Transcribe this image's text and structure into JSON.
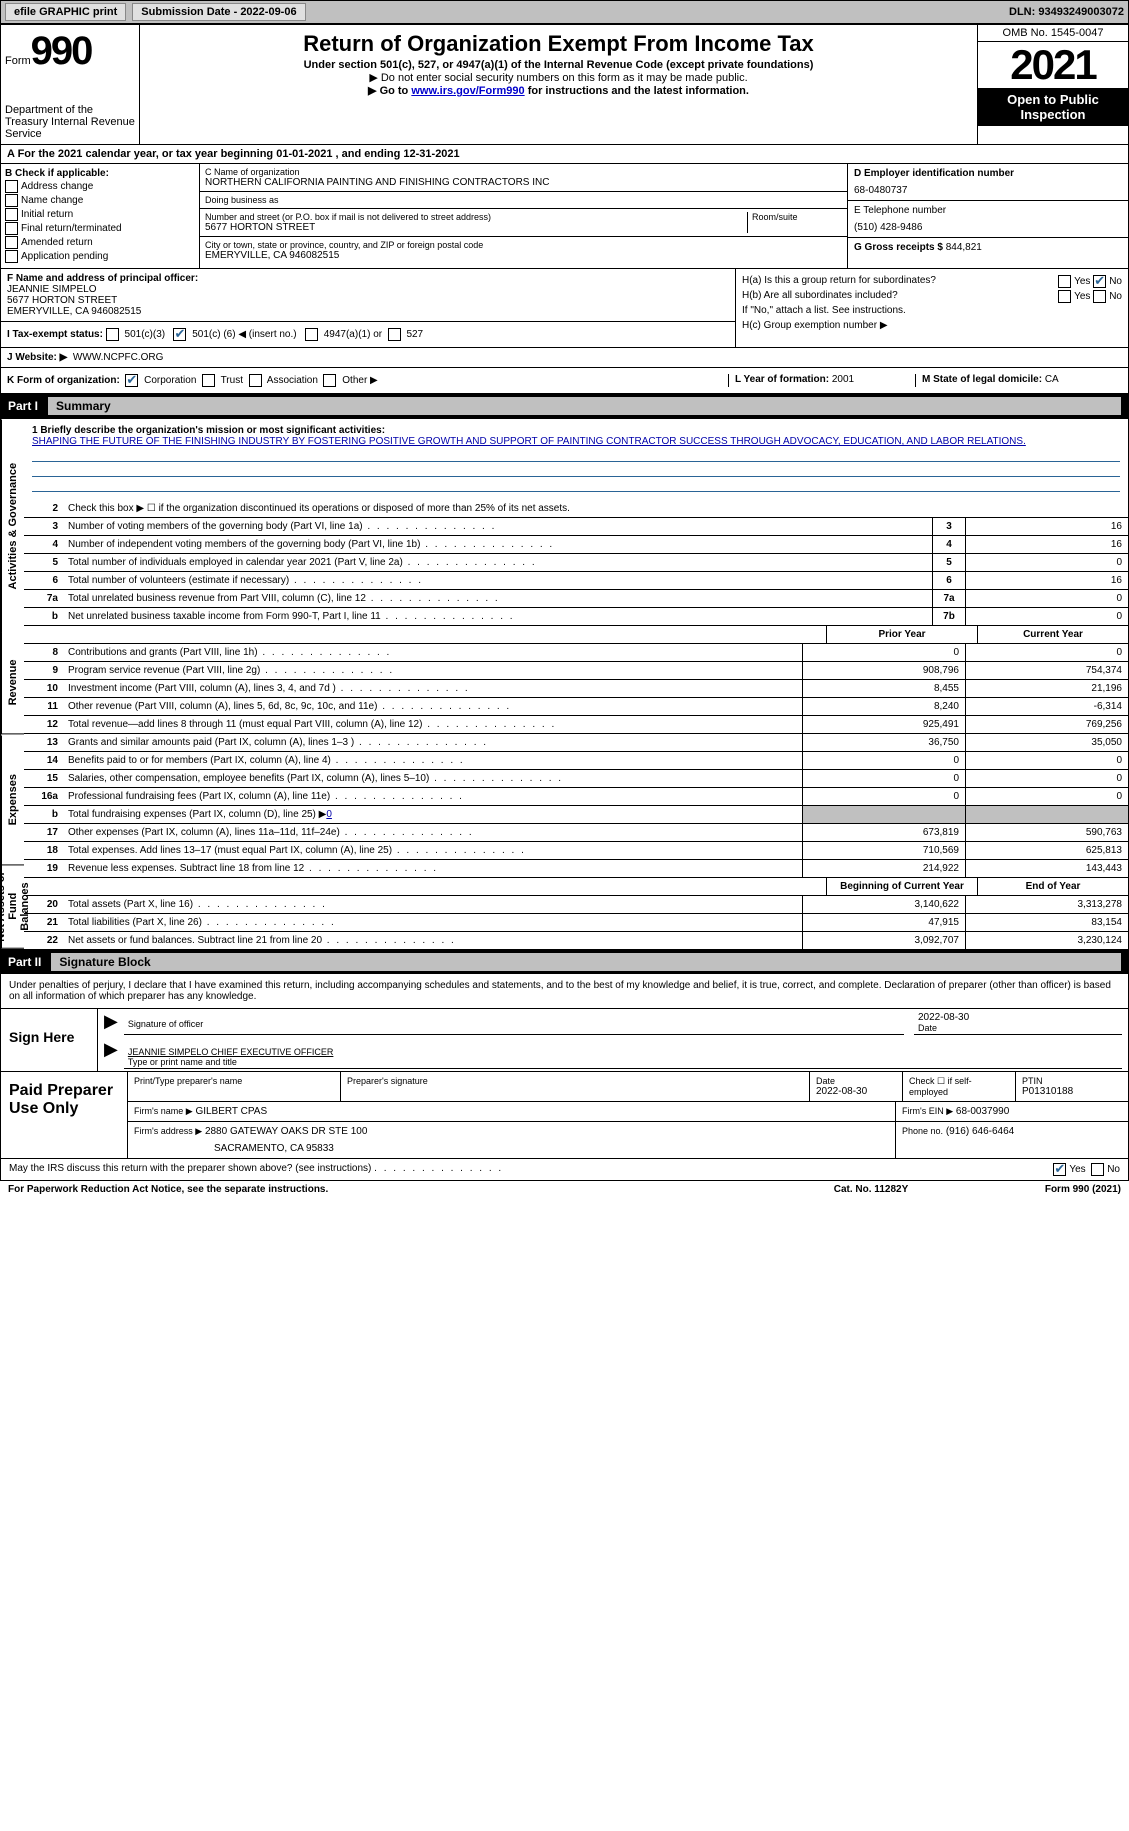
{
  "topbar": {
    "efile": "efile GRAPHIC print",
    "submission_label": "Submission Date - 2022-09-06",
    "dln": "DLN: 93493249003072"
  },
  "header": {
    "form_word": "Form",
    "form_num": "990",
    "dept": "Department of the Treasury Internal Revenue Service",
    "title": "Return of Organization Exempt From Income Tax",
    "sub": "Under section 501(c), 527, or 4947(a)(1) of the Internal Revenue Code (except private foundations)",
    "note1": "▶ Do not enter social security numbers on this form as it may be made public.",
    "note2_pre": "▶ Go to ",
    "note2_link": "www.irs.gov/Form990",
    "note2_post": " for instructions and the latest information.",
    "omb": "OMB No. 1545-0047",
    "year": "2021",
    "open": "Open to Public Inspection"
  },
  "section_a": {
    "text_pre": "A For the 2021 calendar year, or tax year beginning ",
    "begin": "01-01-2021",
    "mid": " , and ending ",
    "end": "12-31-2021"
  },
  "col_b": {
    "label": "B Check if applicable:",
    "items": [
      "Address change",
      "Name change",
      "Initial return",
      "Final return/terminated",
      "Amended return",
      "Application pending"
    ]
  },
  "col_c": {
    "name_label": "C Name of organization",
    "name": "NORTHERN CALIFORNIA PAINTING AND FINISHING CONTRACTORS INC",
    "dba_label": "Doing business as",
    "dba": "",
    "street_label": "Number and street (or P.O. box if mail is not delivered to street address)",
    "room_label": "Room/suite",
    "street": "5677 HORTON STREET",
    "city_label": "City or town, state or province, country, and ZIP or foreign postal code",
    "city": "EMERYVILLE, CA  946082515"
  },
  "col_d": {
    "ein_label": "D Employer identification number",
    "ein": "68-0480737",
    "phone_label": "E Telephone number",
    "phone": "(510) 428-9486",
    "gross_label": "G Gross receipts $",
    "gross": "844,821"
  },
  "block_f": {
    "label": "F Name and address of principal officer:",
    "name": "JEANNIE SIMPELO",
    "addr1": "5677 HORTON STREET",
    "addr2": "EMERYVILLE, CA  946082515"
  },
  "block_h": {
    "a_label": "H(a)  Is this a group return for subordinates?",
    "b_label": "H(b)  Are all subordinates included?",
    "b_note": "If \"No,\" attach a list. See instructions.",
    "c_label": "H(c)  Group exemption number ▶"
  },
  "tax_status": {
    "label": "I  Tax-exempt status:",
    "opt1": "501(c)(3)",
    "opt2_pre": "501(c) (",
    "opt2_num": "6",
    "opt2_post": ") ◀ (insert no.)",
    "opt3": "4947(a)(1) or",
    "opt4": "527"
  },
  "website": {
    "label": "J  Website: ▶",
    "value": "WWW.NCPFC.ORG"
  },
  "k_org": {
    "label": "K Form of organization:",
    "opts": [
      "Corporation",
      "Trust",
      "Association",
      "Other ▶"
    ],
    "year_label": "L Year of formation:",
    "year": "2001",
    "state_label": "M State of legal domicile:",
    "state": "CA"
  },
  "parts": {
    "p1": "Part I",
    "p1_title": "Summary",
    "p2": "Part II",
    "p2_title": "Signature Block"
  },
  "vert_labels": {
    "gov": "Activities & Governance",
    "rev": "Revenue",
    "exp": "Expenses",
    "net": "Net Assets or Fund Balances"
  },
  "mission": {
    "q": "1  Briefly describe the organization's mission or most significant activities:",
    "text": "SHAPING THE FUTURE OF THE FINISHING INDUSTRY BY FOSTERING POSITIVE GROWTH AND SUPPORT OF PAINTING CONTRACTOR SUCCESS THROUGH ADVOCACY, EDUCATION, AND LABOR RELATIONS."
  },
  "line2": "Check this box ▶ ☐ if the organization discontinued its operations or disposed of more than 25% of its net assets.",
  "gov_rows": [
    {
      "n": "3",
      "d": "Number of voting members of the governing body (Part VI, line 1a)",
      "box": "3",
      "v": "16"
    },
    {
      "n": "4",
      "d": "Number of independent voting members of the governing body (Part VI, line 1b)",
      "box": "4",
      "v": "16"
    },
    {
      "n": "5",
      "d": "Total number of individuals employed in calendar year 2021 (Part V, line 2a)",
      "box": "5",
      "v": "0"
    },
    {
      "n": "6",
      "d": "Total number of volunteers (estimate if necessary)",
      "box": "6",
      "v": "16"
    },
    {
      "n": "7a",
      "d": "Total unrelated business revenue from Part VIII, column (C), line 12",
      "box": "7a",
      "v": "0"
    },
    {
      "n": "b",
      "d": "Net unrelated business taxable income from Form 990-T, Part I, line 11",
      "box": "7b",
      "v": "0"
    }
  ],
  "col_headers": {
    "prior": "Prior Year",
    "curr": "Current Year"
  },
  "rev_rows": [
    {
      "n": "8",
      "d": "Contributions and grants (Part VIII, line 1h)",
      "p": "0",
      "c": "0"
    },
    {
      "n": "9",
      "d": "Program service revenue (Part VIII, line 2g)",
      "p": "908,796",
      "c": "754,374"
    },
    {
      "n": "10",
      "d": "Investment income (Part VIII, column (A), lines 3, 4, and 7d )",
      "p": "8,455",
      "c": "21,196"
    },
    {
      "n": "11",
      "d": "Other revenue (Part VIII, column (A), lines 5, 6d, 8c, 9c, 10c, and 11e)",
      "p": "8,240",
      "c": "-6,314"
    },
    {
      "n": "12",
      "d": "Total revenue—add lines 8 through 11 (must equal Part VIII, column (A), line 12)",
      "p": "925,491",
      "c": "769,256"
    }
  ],
  "exp_rows": [
    {
      "n": "13",
      "d": "Grants and similar amounts paid (Part IX, column (A), lines 1–3 )",
      "p": "36,750",
      "c": "35,050"
    },
    {
      "n": "14",
      "d": "Benefits paid to or for members (Part IX, column (A), line 4)",
      "p": "0",
      "c": "0"
    },
    {
      "n": "15",
      "d": "Salaries, other compensation, employee benefits (Part IX, column (A), lines 5–10)",
      "p": "0",
      "c": "0"
    },
    {
      "n": "16a",
      "d": "Professional fundraising fees (Part IX, column (A), line 11e)",
      "p": "0",
      "c": "0"
    }
  ],
  "exp_b": {
    "n": "b",
    "d_pre": "Total fundraising expenses (Part IX, column (D), line 25) ▶",
    "d_val": "0"
  },
  "exp_rows2": [
    {
      "n": "17",
      "d": "Other expenses (Part IX, column (A), lines 11a–11d, 11f–24e)",
      "p": "673,819",
      "c": "590,763"
    },
    {
      "n": "18",
      "d": "Total expenses. Add lines 13–17 (must equal Part IX, column (A), line 25)",
      "p": "710,569",
      "c": "625,813"
    },
    {
      "n": "19",
      "d": "Revenue less expenses. Subtract line 18 from line 12",
      "p": "214,922",
      "c": "143,443"
    }
  ],
  "net_headers": {
    "prior": "Beginning of Current Year",
    "curr": "End of Year"
  },
  "net_rows": [
    {
      "n": "20",
      "d": "Total assets (Part X, line 16)",
      "p": "3,140,622",
      "c": "3,313,278"
    },
    {
      "n": "21",
      "d": "Total liabilities (Part X, line 26)",
      "p": "47,915",
      "c": "83,154"
    },
    {
      "n": "22",
      "d": "Net assets or fund balances. Subtract line 21 from line 20",
      "p": "3,092,707",
      "c": "3,230,124"
    }
  ],
  "sig_intro": "Under penalties of perjury, I declare that I have examined this return, including accompanying schedules and statements, and to the best of my knowledge and belief, it is true, correct, and complete. Declaration of preparer (other than officer) is based on all information of which preparer has any knowledge.",
  "sign": {
    "label": "Sign Here",
    "sig_label": "Signature of officer",
    "date": "2022-08-30",
    "date_label": "Date",
    "name": "JEANNIE SIMPELO  CHIEF EXECUTIVE OFFICER",
    "name_label": "Type or print name and title"
  },
  "prep": {
    "label": "Paid Preparer Use Only",
    "r1": {
      "name_label": "Print/Type preparer's name",
      "sig_label": "Preparer's signature",
      "date_label": "Date",
      "date": "2022-08-30",
      "check_label": "Check ☐ if self-employed",
      "ptin_label": "PTIN",
      "ptin": "P01310188"
    },
    "r2": {
      "firm_label": "Firm's name    ▶",
      "firm": "GILBERT CPAS",
      "ein_label": "Firm's EIN ▶",
      "ein": "68-0037990"
    },
    "r3": {
      "addr_label": "Firm's address ▶",
      "addr1": "2880 GATEWAY OAKS DR STE 100",
      "addr2": "SACRAMENTO, CA  95833",
      "phone_label": "Phone no.",
      "phone": "(916) 646-6464"
    }
  },
  "discuss": {
    "q": "May the IRS discuss this return with the preparer shown above? (see instructions)",
    "yes": "Yes",
    "no": "No"
  },
  "footer": {
    "left": "For Paperwork Reduction Act Notice, see the separate instructions.",
    "mid": "Cat. No. 11282Y",
    "right": "Form 990 (2021)"
  }
}
